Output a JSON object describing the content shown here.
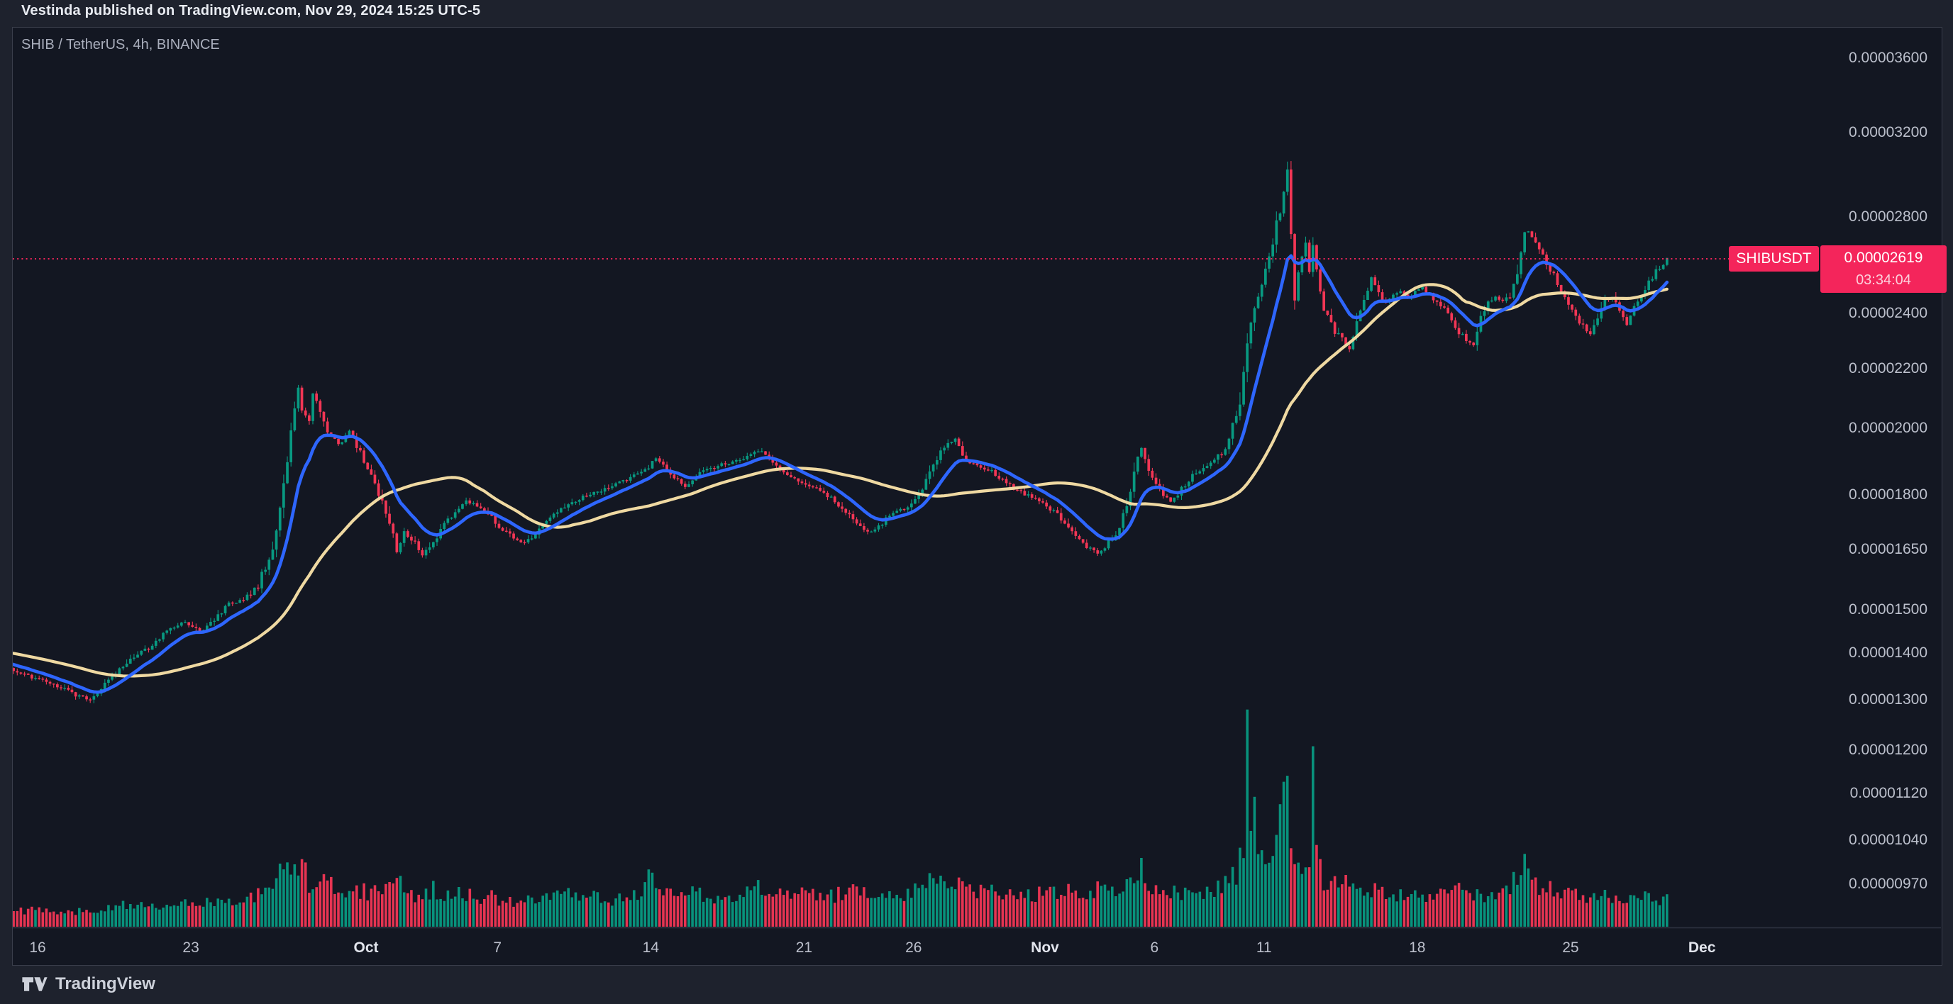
{
  "attribution": "Vestinda published on TradingView.com, Nov 29, 2024 15:25 UTC-5",
  "symbol_title": "SHIB / TetherUS, 4h, BINANCE",
  "price_label": {
    "symbol": "SHIBUSDT",
    "price": "0.00002619",
    "countdown": "03:34:04"
  },
  "footer": {
    "brand": "TradingView"
  },
  "colors": {
    "up": "#089981",
    "down": "#f23655",
    "ma_fast": "#2e66fe",
    "ma_slow": "#efd9a2",
    "accent_pink": "#f4255b",
    "pane_bg": "#131722",
    "outer_bg": "#1e222d",
    "axis_text": "#bcc0cc",
    "separator": "#2e3340"
  },
  "chart_data": {
    "type": "candlestick",
    "title": "SHIB / TetherUS, 4h, BINANCE",
    "symbol": "SHIBUSDT",
    "exchange": "BINANCE",
    "interval": "4h",
    "scale": "logarithmic",
    "price_unit": 1e-08,
    "last_price": 2.619e-05,
    "bar_close_countdown": "03:34:04",
    "visible_date_range": "Sep 14, 2024 - Nov 29, 2024",
    "legend_position": "none",
    "grid": false,
    "candle_count": 455,
    "candles_per_day": 6,
    "price_axis": {
      "side": "right",
      "ticks": [
        {
          "label": "0.00003600",
          "value": 3600
        },
        {
          "label": "0.00003200",
          "value": 3200
        },
        {
          "label": "0.00002800",
          "value": 2800
        },
        {
          "label": "0.00002400",
          "value": 2400
        },
        {
          "label": "0.00002200",
          "value": 2200
        },
        {
          "label": "0.00002000",
          "value": 2000
        },
        {
          "label": "0.00001800",
          "value": 1800
        },
        {
          "label": "0.00001650",
          "value": 1650
        },
        {
          "label": "0.00001500",
          "value": 1500
        },
        {
          "label": "0.00001400",
          "value": 1400
        },
        {
          "label": "0.00001300",
          "value": 1300
        },
        {
          "label": "0.00001200",
          "value": 1200
        },
        {
          "label": "0.00001120",
          "value": 1120
        },
        {
          "label": "0.00001040",
          "value": 1040
        },
        {
          "label": "0.00000970",
          "value": 970
        }
      ]
    },
    "time_axis": {
      "ticks": [
        {
          "label": "16",
          "day": 0
        },
        {
          "label": "23",
          "day": 7
        },
        {
          "label": "Oct",
          "day": 15,
          "major": true
        },
        {
          "label": "7",
          "day": 21
        },
        {
          "label": "14",
          "day": 28
        },
        {
          "label": "21",
          "day": 35
        },
        {
          "label": "26",
          "day": 40
        },
        {
          "label": "Nov",
          "day": 46,
          "major": true
        },
        {
          "label": "6",
          "day": 51
        },
        {
          "label": "11",
          "day": 56
        },
        {
          "label": "18",
          "day": 63
        },
        {
          "label": "25",
          "day": 70
        },
        {
          "label": "Dec",
          "day": 76,
          "major": true
        }
      ]
    },
    "overlays": [
      {
        "name": "fast moving average",
        "type": "EMA",
        "period": 13,
        "color": "#2e66fe"
      },
      {
        "name": "slow moving average",
        "type": "SMA",
        "period": 48,
        "color": "#efd9a2"
      }
    ],
    "price_line": {
      "value": 2619,
      "color": "#f4255b",
      "style": "dotted"
    },
    "price_path": [
      [
        0,
        1365
      ],
      [
        6,
        1348
      ],
      [
        12,
        1333
      ],
      [
        18,
        1310
      ],
      [
        22,
        1300
      ],
      [
        26,
        1335
      ],
      [
        32,
        1380
      ],
      [
        38,
        1412
      ],
      [
        44,
        1455
      ],
      [
        48,
        1472
      ],
      [
        52,
        1448
      ],
      [
        56,
        1478
      ],
      [
        60,
        1515
      ],
      [
        64,
        1522
      ],
      [
        68,
        1560
      ],
      [
        72,
        1655
      ],
      [
        75,
        1825
      ],
      [
        78,
        2055
      ],
      [
        79,
        2125
      ],
      [
        80,
        2060
      ],
      [
        82,
        2030
      ],
      [
        83,
        2120
      ],
      [
        85,
        2065
      ],
      [
        87,
        1995
      ],
      [
        90,
        1950
      ],
      [
        93,
        1988
      ],
      [
        96,
        1925
      ],
      [
        99,
        1855
      ],
      [
        102,
        1775
      ],
      [
        105,
        1685
      ],
      [
        106,
        1645
      ],
      [
        108,
        1695
      ],
      [
        111,
        1665
      ],
      [
        113,
        1635
      ],
      [
        116,
        1672
      ],
      [
        119,
        1718
      ],
      [
        122,
        1748
      ],
      [
        125,
        1782
      ],
      [
        128,
        1772
      ],
      [
        131,
        1752
      ],
      [
        134,
        1712
      ],
      [
        137,
        1688
      ],
      [
        140,
        1668
      ],
      [
        143,
        1682
      ],
      [
        146,
        1718
      ],
      [
        150,
        1752
      ],
      [
        154,
        1778
      ],
      [
        158,
        1798
      ],
      [
        162,
        1812
      ],
      [
        166,
        1832
      ],
      [
        170,
        1848
      ],
      [
        174,
        1872
      ],
      [
        177,
        1908
      ],
      [
        179,
        1882
      ],
      [
        182,
        1852
      ],
      [
        185,
        1822
      ],
      [
        188,
        1858
      ],
      [
        192,
        1878
      ],
      [
        196,
        1892
      ],
      [
        200,
        1902
      ],
      [
        203,
        1922
      ],
      [
        206,
        1932
      ],
      [
        209,
        1892
      ],
      [
        212,
        1862
      ],
      [
        215,
        1848
      ],
      [
        218,
        1832
      ],
      [
        221,
        1818
      ],
      [
        224,
        1798
      ],
      [
        227,
        1772
      ],
      [
        230,
        1742
      ],
      [
        233,
        1708
      ],
      [
        236,
        1695
      ],
      [
        239,
        1722
      ],
      [
        242,
        1748
      ],
      [
        245,
        1762
      ],
      [
        248,
        1788
      ],
      [
        251,
        1842
      ],
      [
        254,
        1908
      ],
      [
        257,
        1952
      ],
      [
        259,
        1968
      ],
      [
        261,
        1922
      ],
      [
        263,
        1892
      ],
      [
        266,
        1882
      ],
      [
        269,
        1868
      ],
      [
        272,
        1842
      ],
      [
        275,
        1818
      ],
      [
        278,
        1802
      ],
      [
        281,
        1792
      ],
      [
        284,
        1768
      ],
      [
        287,
        1748
      ],
      [
        290,
        1708
      ],
      [
        293,
        1672
      ],
      [
        296,
        1652
      ],
      [
        298,
        1638
      ],
      [
        301,
        1668
      ],
      [
        304,
        1708
      ],
      [
        307,
        1822
      ],
      [
        309,
        1922
      ],
      [
        310,
        1938
      ],
      [
        312,
        1872
      ],
      [
        314,
        1832
      ],
      [
        316,
        1798
      ],
      [
        318,
        1778
      ],
      [
        321,
        1818
      ],
      [
        324,
        1858
      ],
      [
        327,
        1878
      ],
      [
        330,
        1898
      ],
      [
        333,
        1942
      ],
      [
        336,
        2042
      ],
      [
        338,
        2162
      ],
      [
        340,
        2362
      ],
      [
        342,
        2462
      ],
      [
        344,
        2562
      ],
      [
        346,
        2682
      ],
      [
        348,
        2832
      ],
      [
        349,
        2922
      ],
      [
        350,
        3012
      ],
      [
        351,
        2702
      ],
      [
        352,
        2482
      ],
      [
        353,
        2562
      ],
      [
        354,
        2622
      ],
      [
        355,
        2692
      ],
      [
        356,
        2562
      ],
      [
        357,
        2692
      ],
      [
        358,
        2562
      ],
      [
        359,
        2462
      ],
      [
        361,
        2402
      ],
      [
        363,
        2332
      ],
      [
        365,
        2302
      ],
      [
        367,
        2262
      ],
      [
        369,
        2362
      ],
      [
        371,
        2452
      ],
      [
        373,
        2542
      ],
      [
        375,
        2482
      ],
      [
        377,
        2442
      ],
      [
        379,
        2472
      ],
      [
        381,
        2492
      ],
      [
        383,
        2462
      ],
      [
        385,
        2482
      ],
      [
        387,
        2502
      ],
      [
        389,
        2472
      ],
      [
        391,
        2442
      ],
      [
        393,
        2422
      ],
      [
        395,
        2382
      ],
      [
        397,
        2332
      ],
      [
        399,
        2302
      ],
      [
        401,
        2292
      ],
      [
        403,
        2382
      ],
      [
        405,
        2442
      ],
      [
        407,
        2462
      ],
      [
        409,
        2452
      ],
      [
        411,
        2472
      ],
      [
        413,
        2562
      ],
      [
        415,
        2722
      ],
      [
        416,
        2742
      ],
      [
        417,
        2702
      ],
      [
        419,
        2652
      ],
      [
        421,
        2602
      ],
      [
        423,
        2552
      ],
      [
        425,
        2482
      ],
      [
        427,
        2432
      ],
      [
        429,
        2392
      ],
      [
        431,
        2352
      ],
      [
        433,
        2322
      ],
      [
        435,
        2392
      ],
      [
        437,
        2452
      ],
      [
        439,
        2472
      ],
      [
        441,
        2422
      ],
      [
        443,
        2362
      ],
      [
        445,
        2432
      ],
      [
        447,
        2482
      ],
      [
        449,
        2522
      ],
      [
        451,
        2572
      ],
      [
        453,
        2602
      ],
      [
        454,
        2619
      ]
    ],
    "volume_envelope": [
      [
        0,
        26
      ],
      [
        8,
        32
      ],
      [
        16,
        26
      ],
      [
        24,
        30
      ],
      [
        32,
        38
      ],
      [
        40,
        34
      ],
      [
        48,
        42
      ],
      [
        56,
        46
      ],
      [
        62,
        44
      ],
      [
        66,
        54
      ],
      [
        70,
        66
      ],
      [
        73,
        90
      ],
      [
        76,
        118
      ],
      [
        78,
        98
      ],
      [
        80,
        108
      ],
      [
        82,
        76
      ],
      [
        86,
        88
      ],
      [
        90,
        60
      ],
      [
        95,
        66
      ],
      [
        99,
        60
      ],
      [
        104,
        74
      ],
      [
        106,
        96
      ],
      [
        108,
        62
      ],
      [
        112,
        52
      ],
      [
        116,
        66
      ],
      [
        120,
        56
      ],
      [
        124,
        62
      ],
      [
        128,
        50
      ],
      [
        132,
        52
      ],
      [
        136,
        42
      ],
      [
        140,
        46
      ],
      [
        144,
        44
      ],
      [
        148,
        52
      ],
      [
        152,
        58
      ],
      [
        156,
        48
      ],
      [
        160,
        52
      ],
      [
        164,
        46
      ],
      [
        168,
        56
      ],
      [
        172,
        62
      ],
      [
        176,
        90
      ],
      [
        178,
        60
      ],
      [
        182,
        52
      ],
      [
        186,
        58
      ],
      [
        190,
        56
      ],
      [
        194,
        48
      ],
      [
        198,
        58
      ],
      [
        202,
        62
      ],
      [
        206,
        68
      ],
      [
        210,
        58
      ],
      [
        214,
        52
      ],
      [
        218,
        64
      ],
      [
        222,
        50
      ],
      [
        226,
        56
      ],
      [
        230,
        66
      ],
      [
        234,
        56
      ],
      [
        238,
        60
      ],
      [
        242,
        50
      ],
      [
        246,
        58
      ],
      [
        250,
        68
      ],
      [
        253,
        82
      ],
      [
        256,
        88
      ],
      [
        259,
        78
      ],
      [
        262,
        64
      ],
      [
        266,
        60
      ],
      [
        270,
        66
      ],
      [
        274,
        60
      ],
      [
        278,
        54
      ],
      [
        282,
        58
      ],
      [
        286,
        58
      ],
      [
        290,
        68
      ],
      [
        294,
        62
      ],
      [
        298,
        66
      ],
      [
        302,
        60
      ],
      [
        307,
        86
      ],
      [
        310,
        108
      ],
      [
        312,
        78
      ],
      [
        316,
        60
      ],
      [
        320,
        58
      ],
      [
        324,
        54
      ],
      [
        328,
        62
      ],
      [
        332,
        72
      ],
      [
        336,
        96
      ],
      [
        338,
        130
      ],
      [
        339,
        335
      ],
      [
        340,
        165
      ],
      [
        341,
        200
      ],
      [
        342,
        135
      ],
      [
        343,
        108
      ],
      [
        344,
        125
      ],
      [
        345,
        95
      ],
      [
        346,
        105
      ],
      [
        347,
        130
      ],
      [
        348,
        185
      ],
      [
        349,
        230
      ],
      [
        350,
        245
      ],
      [
        351,
        140
      ],
      [
        352,
        115
      ],
      [
        353,
        95
      ],
      [
        354,
        105
      ],
      [
        355,
        92
      ],
      [
        356,
        125
      ],
      [
        357,
        285
      ],
      [
        358,
        140
      ],
      [
        359,
        100
      ],
      [
        360,
        85
      ],
      [
        362,
        75
      ],
      [
        364,
        68
      ],
      [
        366,
        86
      ],
      [
        368,
        72
      ],
      [
        370,
        60
      ],
      [
        373,
        64
      ],
      [
        376,
        58
      ],
      [
        379,
        52
      ],
      [
        382,
        62
      ],
      [
        385,
        54
      ],
      [
        388,
        58
      ],
      [
        391,
        52
      ],
      [
        394,
        58
      ],
      [
        397,
        62
      ],
      [
        400,
        58
      ],
      [
        403,
        54
      ],
      [
        406,
        52
      ],
      [
        409,
        58
      ],
      [
        412,
        78
      ],
      [
        414,
        96
      ],
      [
        415,
        118
      ],
      [
        416,
        88
      ],
      [
        418,
        70
      ],
      [
        420,
        64
      ],
      [
        423,
        68
      ],
      [
        426,
        60
      ],
      [
        429,
        58
      ],
      [
        432,
        52
      ],
      [
        435,
        56
      ],
      [
        438,
        52
      ],
      [
        441,
        48
      ],
      [
        444,
        46
      ],
      [
        447,
        52
      ],
      [
        450,
        56
      ],
      [
        452,
        40
      ],
      [
        454,
        66
      ]
    ]
  }
}
